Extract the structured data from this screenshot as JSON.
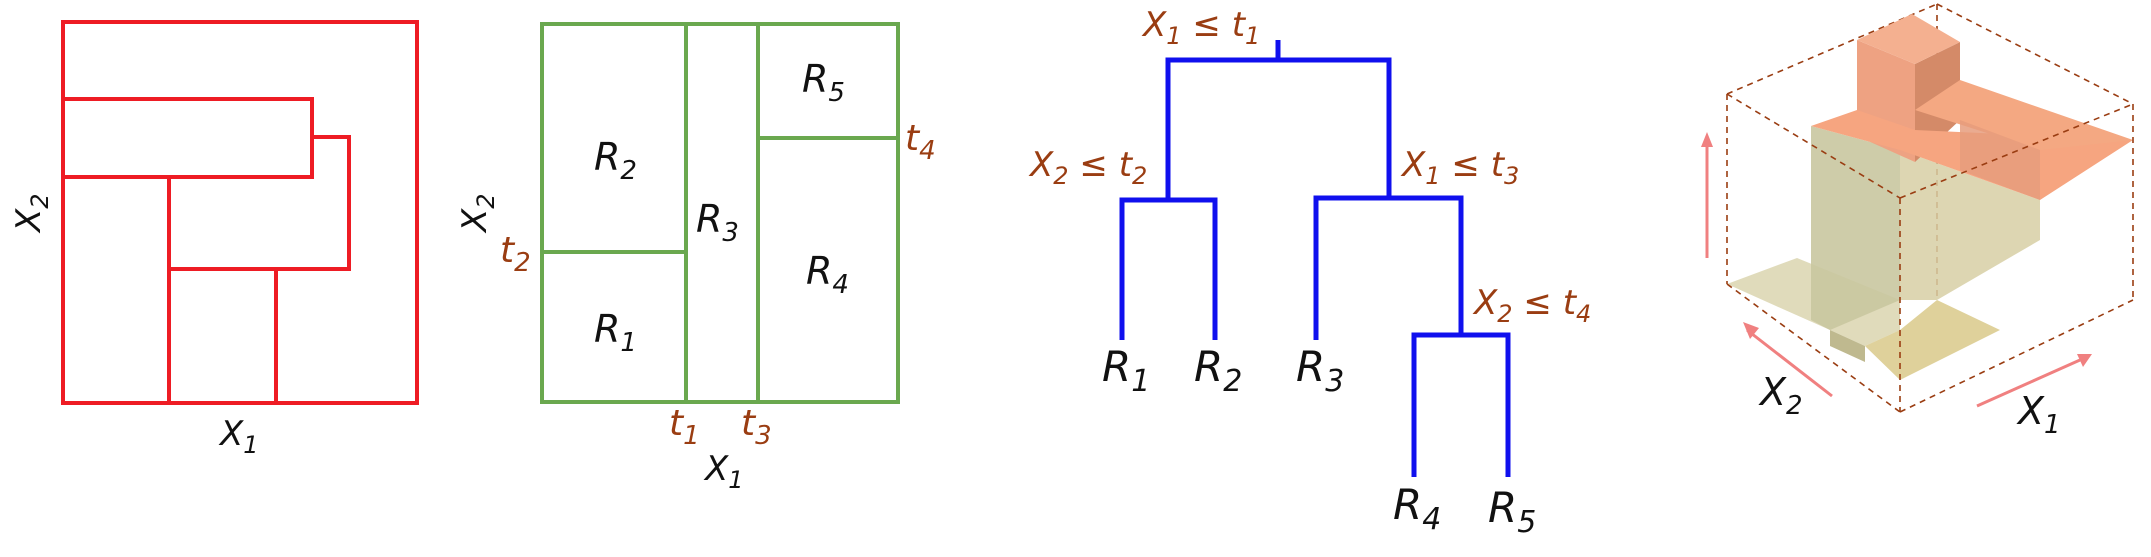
{
  "colors": {
    "red": "#ee1c24",
    "green": "#6aa84f",
    "blue": "#1010ee",
    "brown": "#9a3d12",
    "black": "#111111",
    "arrow": "#f08080",
    "surface_top": "#f6a580",
    "surface_side": "#c9c7a0",
    "surface_low": "#ddd7b4"
  },
  "panel1": {
    "xlabel": "X",
    "xlabel_sub": "1",
    "ylabel": "X",
    "ylabel_sub": "2"
  },
  "panel2": {
    "regions": [
      {
        "id": "R2",
        "letter": "R",
        "sub": "2"
      },
      {
        "id": "R1",
        "letter": "R",
        "sub": "1"
      },
      {
        "id": "R3",
        "letter": "R",
        "sub": "3"
      },
      {
        "id": "R5",
        "letter": "R",
        "sub": "5"
      },
      {
        "id": "R4",
        "letter": "R",
        "sub": "4"
      }
    ],
    "thresholds": [
      {
        "id": "t1",
        "letter": "t",
        "sub": "1"
      },
      {
        "id": "t2",
        "letter": "t",
        "sub": "2"
      },
      {
        "id": "t3",
        "letter": "t",
        "sub": "3"
      },
      {
        "id": "t4",
        "letter": "t",
        "sub": "4"
      }
    ],
    "xlabel": "X",
    "xlabel_sub": "1",
    "ylabel": "X",
    "ylabel_sub": "2"
  },
  "tree": {
    "splits": [
      {
        "id": "s1",
        "var": "X",
        "var_sub": "1",
        "op": " ≤ ",
        "thr": "t",
        "thr_sub": "1"
      },
      {
        "id": "s2",
        "var": "X",
        "var_sub": "2",
        "op": " ≤ ",
        "thr": "t",
        "thr_sub": "2"
      },
      {
        "id": "s3",
        "var": "X",
        "var_sub": "1",
        "op": " ≤ ",
        "thr": "t",
        "thr_sub": "3"
      },
      {
        "id": "s4",
        "var": "X",
        "var_sub": "2",
        "op": " ≤ ",
        "thr": "t",
        "thr_sub": "4"
      }
    ],
    "leaves": [
      {
        "id": "R1",
        "letter": "R",
        "sub": "1"
      },
      {
        "id": "R2",
        "letter": "R",
        "sub": "2"
      },
      {
        "id": "R3",
        "letter": "R",
        "sub": "3"
      },
      {
        "id": "R4",
        "letter": "R",
        "sub": "4"
      },
      {
        "id": "R5",
        "letter": "R",
        "sub": "5"
      }
    ]
  },
  "panel4": {
    "x1_label": "X",
    "x1_sub": "1",
    "x2_label": "X",
    "x2_sub": "2"
  }
}
